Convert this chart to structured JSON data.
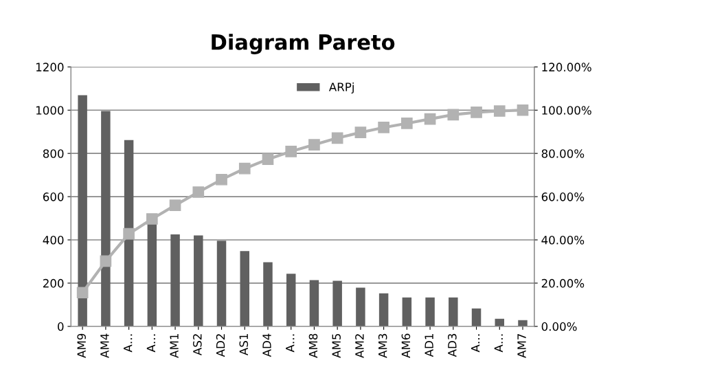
{
  "chart_data": {
    "type": "bar",
    "title": "Diagram Pareto",
    "categories": [
      "AM9",
      "AM4",
      "A…",
      "A…",
      "AM1",
      "AS2",
      "AD2",
      "AS1",
      "AD4",
      "A…",
      "AM8",
      "AM5",
      "AM2",
      "AM3",
      "AM6",
      "AD1",
      "AD3",
      "A…",
      "A…",
      "AM7"
    ],
    "series": [
      {
        "name": "ARPj",
        "color": "#606060",
        "values": [
          1069,
          996,
          862,
          473,
          425,
          421,
          396,
          348,
          297,
          243,
          214,
          211,
          179,
          153,
          134,
          134,
          134,
          83,
          35,
          29
        ]
      },
      {
        "type": "line",
        "axis": "y2",
        "color": "#b2b2b2",
        "marker": "square",
        "values": [
          15.6,
          30.2,
          42.8,
          49.7,
          56.0,
          62.1,
          67.9,
          73.0,
          77.3,
          80.9,
          84.0,
          87.1,
          89.7,
          92.0,
          93.9,
          95.9,
          97.9,
          99.0,
          99.6,
          100
        ]
      }
    ],
    "ylim": [
      0,
      1200
    ],
    "yticks": [
      0,
      200,
      400,
      600,
      800,
      1000,
      1200
    ],
    "y2lim": [
      0,
      120
    ],
    "y2ticks": [
      {
        "value": 0,
        "label": "0.00%"
      },
      {
        "value": 20,
        "label": "20.00%"
      },
      {
        "value": 40,
        "label": "40.00%"
      },
      {
        "value": 60,
        "label": "60.00%"
      },
      {
        "value": 80,
        "label": "80.00%"
      },
      {
        "value": 100,
        "label": "100.00%"
      },
      {
        "value": 120,
        "label": "120.00%"
      }
    ],
    "grid": "y",
    "legend": "top"
  }
}
